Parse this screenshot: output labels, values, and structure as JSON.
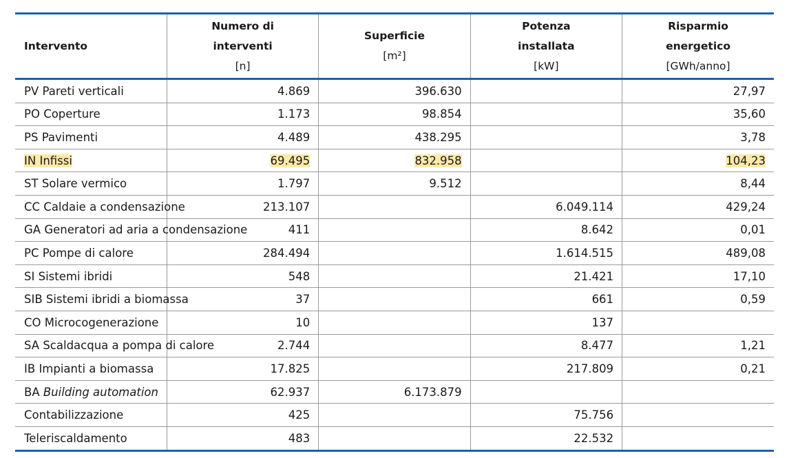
{
  "table": {
    "columns": [
      {
        "title": [
          "Intervento"
        ]
      },
      {
        "title": [
          "Numero di",
          "interventi"
        ],
        "unit": "[n]"
      },
      {
        "title": [
          "Superficie"
        ],
        "unit": "[m²]"
      },
      {
        "title": [
          "Potenza",
          "installata"
        ],
        "unit": "[kW]"
      },
      {
        "title": [
          "Risparmio",
          "energetico"
        ],
        "unit": "[GWh/anno]"
      }
    ],
    "rows": [
      {
        "code": "PV",
        "name": "Pareti verticali",
        "cells": [
          "4.869",
          "396.630",
          null,
          "27,97"
        ]
      },
      {
        "code": "PO",
        "name": "Coperture",
        "cells": [
          "1.173",
          "98.854",
          null,
          "35,60"
        ]
      },
      {
        "code": "PS",
        "name": "Pavimenti",
        "cells": [
          "4.489",
          "438.295",
          null,
          "3,78"
        ]
      },
      {
        "code": "IN",
        "name": "Infissi",
        "cells": [
          "69.495",
          "832.958",
          null,
          "104,23"
        ],
        "highlight": true
      },
      {
        "code": "ST",
        "name": "Solare vermico",
        "cells": [
          "1.797",
          "9.512",
          null,
          "8,44"
        ]
      },
      {
        "code": "CC",
        "name": "Caldaie a condensazione",
        "cells": [
          "213.107",
          null,
          "6.049.114",
          "429,24"
        ]
      },
      {
        "code": "GA",
        "name": "Generatori ad aria a condensazione",
        "cells": [
          "411",
          null,
          "8.642",
          "0,01"
        ]
      },
      {
        "code": "PC",
        "name": "Pompe di calore",
        "cells": [
          "284.494",
          null,
          "1.614.515",
          "489,08"
        ]
      },
      {
        "code": "SI",
        "name": "Sistemi ibridi",
        "cells": [
          "548",
          null,
          "21.421",
          "17,10"
        ]
      },
      {
        "code": "SIB",
        "name": "Sistemi ibridi a biomassa",
        "cells": [
          "37",
          null,
          "661",
          "0,59"
        ]
      },
      {
        "code": "CO",
        "name": "Microcogenerazione",
        "cells": [
          "10",
          null,
          "137",
          null
        ]
      },
      {
        "code": "SA",
        "name": "Scaldacqua a pompa di calore",
        "cells": [
          "2.744",
          null,
          "8.477",
          "1,21"
        ]
      },
      {
        "code": "IB",
        "name": "Impianti a biomassa",
        "cells": [
          "17.825",
          null,
          "217.809",
          "0,21"
        ]
      },
      {
        "code": "BA",
        "name": "Building automation",
        "cells": [
          "62.937",
          "6.173.879",
          null,
          null
        ],
        "italic": true
      },
      {
        "name": "Contabilizzazione",
        "cells": [
          "425",
          null,
          "75.756",
          null
        ]
      },
      {
        "name": "Teleriscaldamento",
        "cells": [
          "483",
          null,
          "22.532",
          null
        ]
      }
    ]
  }
}
